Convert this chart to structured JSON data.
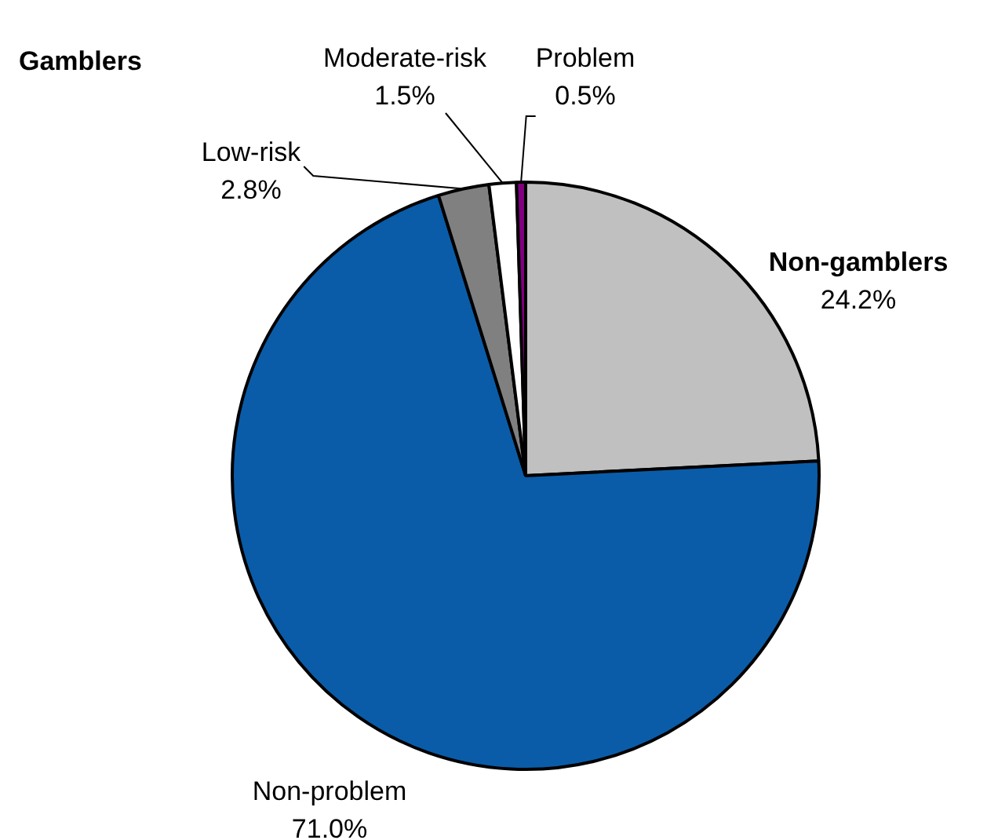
{
  "chart_data": {
    "type": "pie",
    "categories": [
      "Non-gamblers",
      "Non-problem",
      "Low-risk",
      "Moderate-risk",
      "Problem"
    ],
    "values": [
      24.2,
      71.0,
      2.8,
      1.5,
      0.5
    ],
    "colors": [
      "#c0c0c0",
      "#0a5ca8",
      "#808080",
      "#ffffff",
      "#800080"
    ],
    "value_labels": [
      "24.2%",
      "71.0%",
      "2.8%",
      "1.5%",
      "0.5%"
    ],
    "annotations": [
      "Gamblers"
    ],
    "legend": false
  }
}
